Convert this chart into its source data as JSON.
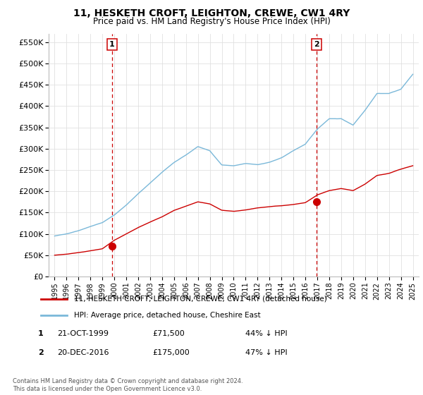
{
  "title": "11, HESKETH CROFT, LEIGHTON, CREWE, CW1 4RY",
  "subtitle": "Price paid vs. HM Land Registry's House Price Index (HPI)",
  "legend_line1": "11, HESKETH CROFT, LEIGHTON, CREWE, CW1 4RY (detached house)",
  "legend_line2": "HPI: Average price, detached house, Cheshire East",
  "footer": "Contains HM Land Registry data © Crown copyright and database right 2024.\nThis data is licensed under the Open Government Licence v3.0.",
  "table": [
    {
      "num": "1",
      "date": "21-OCT-1999",
      "price": "£71,500",
      "pct": "44% ↓ HPI"
    },
    {
      "num": "2",
      "date": "20-DEC-2016",
      "price": "£175,000",
      "pct": "47% ↓ HPI"
    }
  ],
  "marker1_x": 1999.8,
  "marker1_y": 71500,
  "marker2_x": 2016.96,
  "marker2_y": 175000,
  "vline1_x": 1999.8,
  "vline2_x": 2016.96,
  "ylim": [
    0,
    570000
  ],
  "xlim_start": 1994.5,
  "xlim_end": 2025.5,
  "hpi_color": "#7ab8d9",
  "price_color": "#cc0000",
  "vline_color": "#cc0000",
  "grid_color": "#e0e0e0",
  "background_color": "#ffffff",
  "yticks": [
    0,
    50000,
    100000,
    150000,
    200000,
    250000,
    300000,
    350000,
    400000,
    450000,
    500000,
    550000
  ],
  "ytick_labels": [
    "£0",
    "£50K",
    "£100K",
    "£150K",
    "£200K",
    "£250K",
    "£300K",
    "£350K",
    "£400K",
    "£450K",
    "£500K",
    "£550K"
  ],
  "xticks": [
    1995,
    1996,
    1997,
    1998,
    1999,
    2000,
    2001,
    2002,
    2003,
    2004,
    2005,
    2006,
    2007,
    2008,
    2009,
    2010,
    2011,
    2012,
    2013,
    2014,
    2015,
    2016,
    2017,
    2018,
    2019,
    2020,
    2021,
    2022,
    2023,
    2024,
    2025
  ],
  "hpi_base_years": [
    1995,
    1996,
    1997,
    1998,
    1999,
    2000,
    2001,
    2002,
    2003,
    2004,
    2005,
    2006,
    2007,
    2008,
    2009,
    2010,
    2011,
    2012,
    2013,
    2014,
    2015,
    2016,
    2017,
    2018,
    2019,
    2020,
    2021,
    2022,
    2023,
    2024,
    2025
  ],
  "hpi_base_vals": [
    95000,
    100000,
    108000,
    118000,
    127000,
    145000,
    168000,
    195000,
    220000,
    245000,
    268000,
    285000,
    305000,
    295000,
    262000,
    260000,
    265000,
    262000,
    268000,
    278000,
    295000,
    310000,
    345000,
    370000,
    370000,
    355000,
    390000,
    430000,
    430000,
    440000,
    475000
  ],
  "red_base_years": [
    1995,
    1996,
    1997,
    1998,
    1999,
    2000,
    2001,
    2002,
    2003,
    2004,
    2005,
    2006,
    2007,
    2008,
    2009,
    2010,
    2011,
    2012,
    2013,
    2014,
    2015,
    2016,
    2017,
    2018,
    2019,
    2020,
    2021,
    2022,
    2023,
    2024,
    2025
  ],
  "red_base_vals": [
    50000,
    52000,
    56000,
    60000,
    65000,
    85000,
    100000,
    115000,
    128000,
    140000,
    155000,
    165000,
    175000,
    170000,
    155000,
    152000,
    155000,
    160000,
    163000,
    165000,
    168000,
    172000,
    190000,
    200000,
    205000,
    200000,
    215000,
    235000,
    240000,
    250000,
    258000
  ]
}
